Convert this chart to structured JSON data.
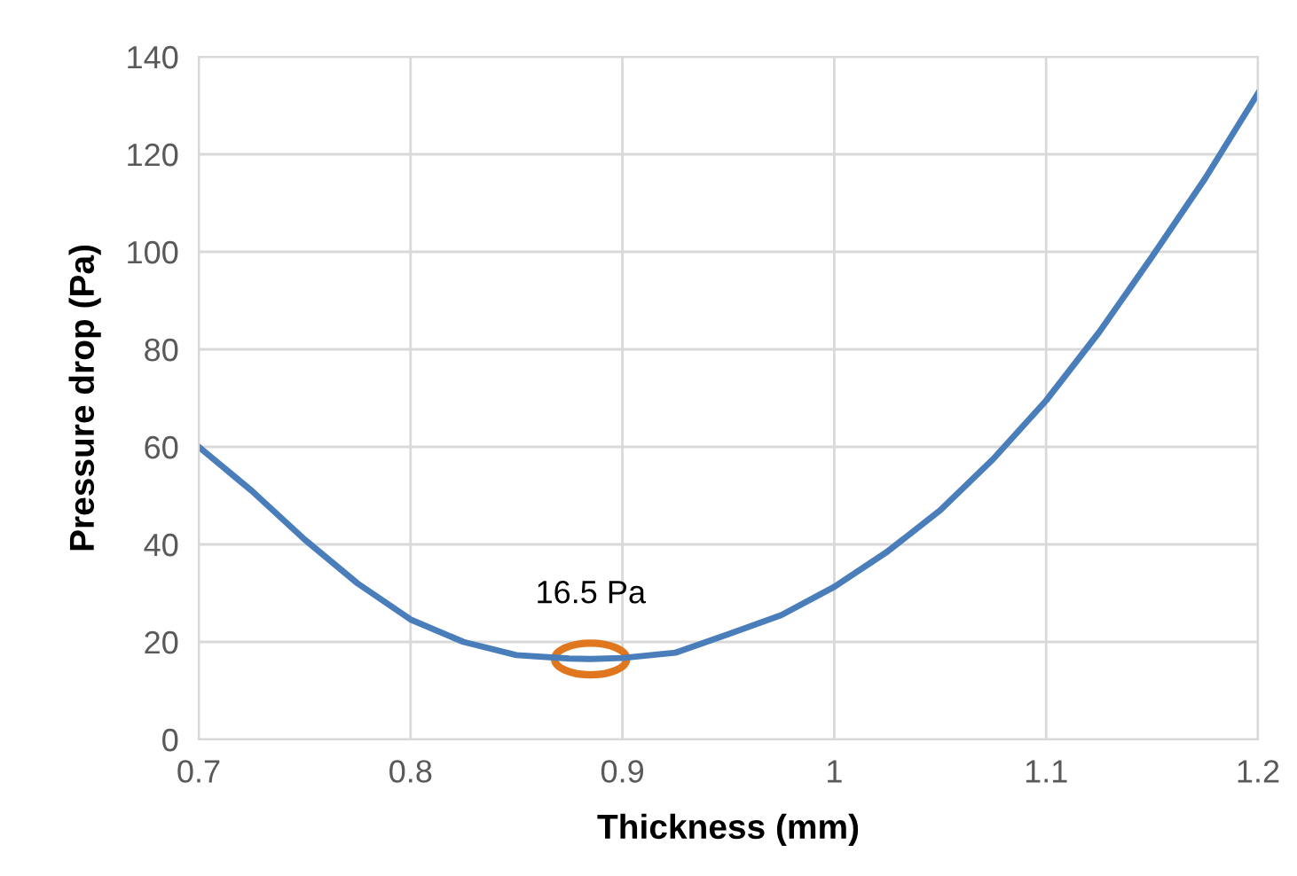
{
  "chart_data": {
    "type": "line",
    "xlabel": "Thickness (mm)",
    "ylabel": "Pressure drop (Pa)",
    "x": [
      0.7,
      0.725,
      0.75,
      0.775,
      0.8,
      0.825,
      0.85,
      0.875,
      0.885,
      0.9,
      0.925,
      0.95,
      0.975,
      1.0,
      1.025,
      1.05,
      1.075,
      1.1,
      1.125,
      1.15,
      1.175,
      1.2
    ],
    "series": [
      {
        "color": "#4a7ebb",
        "values": [
          60,
          51,
          41,
          32,
          24.6,
          20,
          17.3,
          16.6,
          16.5,
          16.7,
          17.8,
          21.6,
          25.5,
          31.3,
          38.5,
          47,
          57.5,
          69.5,
          83.5,
          99,
          115,
          132.5
        ]
      }
    ],
    "xlim": [
      0.7,
      1.2
    ],
    "xticks": [
      {
        "value": 0.7,
        "label": "0.7"
      },
      {
        "value": 0.8,
        "label": "0.8"
      },
      {
        "value": 0.9,
        "label": "0.9"
      },
      {
        "value": 1,
        "label": "1"
      },
      {
        "value": 1.1,
        "label": "1.1"
      },
      {
        "value": 1.2,
        "label": "1.2"
      }
    ],
    "ylim": [
      0,
      140
    ],
    "yticks": [
      0,
      20,
      40,
      60,
      80,
      100,
      120,
      140
    ],
    "grid": true,
    "legend": false,
    "marker": "none",
    "line_style": "solid",
    "annotations": [
      {
        "text": "16.5 Pa",
        "x": 0.885,
        "y": 16.5
      }
    ]
  }
}
